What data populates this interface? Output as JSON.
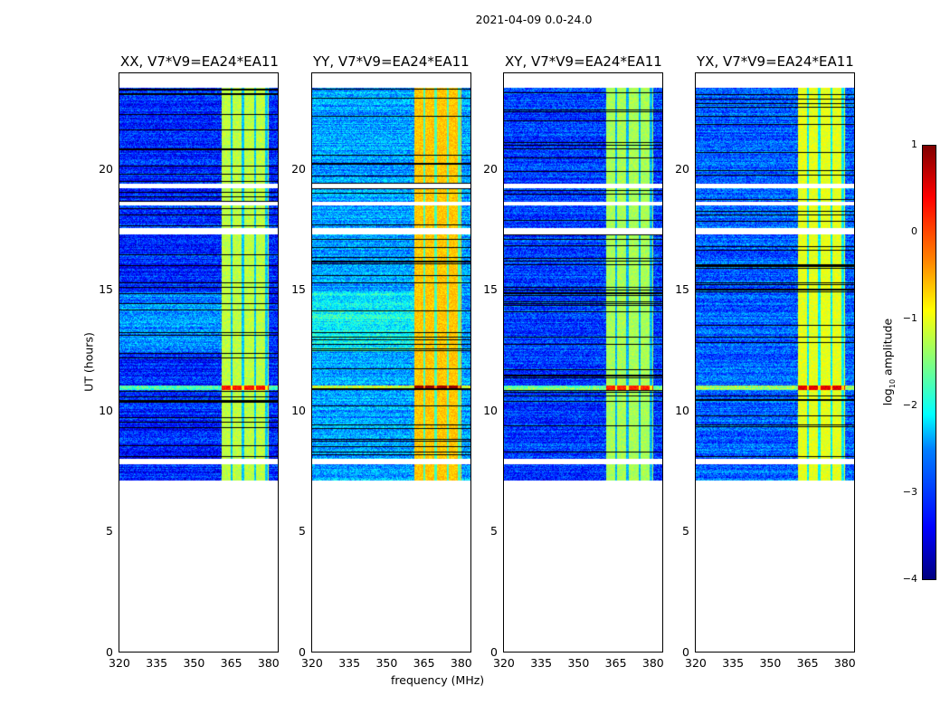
{
  "chart_data": {
    "type": "heatmap",
    "title": "2021-04-09 0.0-24.0",
    "xlabel": "frequency (MHz)",
    "ylabel": "UT (hours)",
    "xlim": [
      320,
      384.4
    ],
    "ylim": [
      0,
      24
    ],
    "xticks": [
      "320",
      "335",
      "350",
      "365",
      "380"
    ],
    "yticks": [
      "0",
      "5",
      "10",
      "15",
      "20"
    ],
    "data_time_range_hours": [
      7.2,
      23.4
    ],
    "flagged_gap_hours": [
      [
        7.85,
        8.05
      ],
      [
        17.35,
        17.6
      ],
      [
        19.25,
        19.45
      ],
      [
        18.55,
        18.7
      ]
    ],
    "rfi_band_mhz": [
      361,
      380
    ],
    "panels": [
      {
        "title": "XX, V7*V9=EA24*EA11",
        "base_level": -3.2,
        "band_level": -1.2
      },
      {
        "title": "YY, V7*V9=EA24*EA11",
        "base_level": -2.6,
        "band_level": -0.6
      },
      {
        "title": "XY, V7*V9=EA24*EA11",
        "base_level": -3.1,
        "band_level": -1.3
      },
      {
        "title": "YX, V7*V9=EA24*EA11",
        "base_level": -2.9,
        "band_level": -1.0
      }
    ],
    "colorbar": {
      "label": "log10 amplitude",
      "label_main": "log",
      "label_sub": "10",
      "label_rest": " amplitude",
      "range": [
        -4,
        1
      ],
      "ticks": [
        "1",
        "0",
        "−1",
        "−2",
        "−3",
        "−4"
      ],
      "colormap": "jet"
    }
  }
}
